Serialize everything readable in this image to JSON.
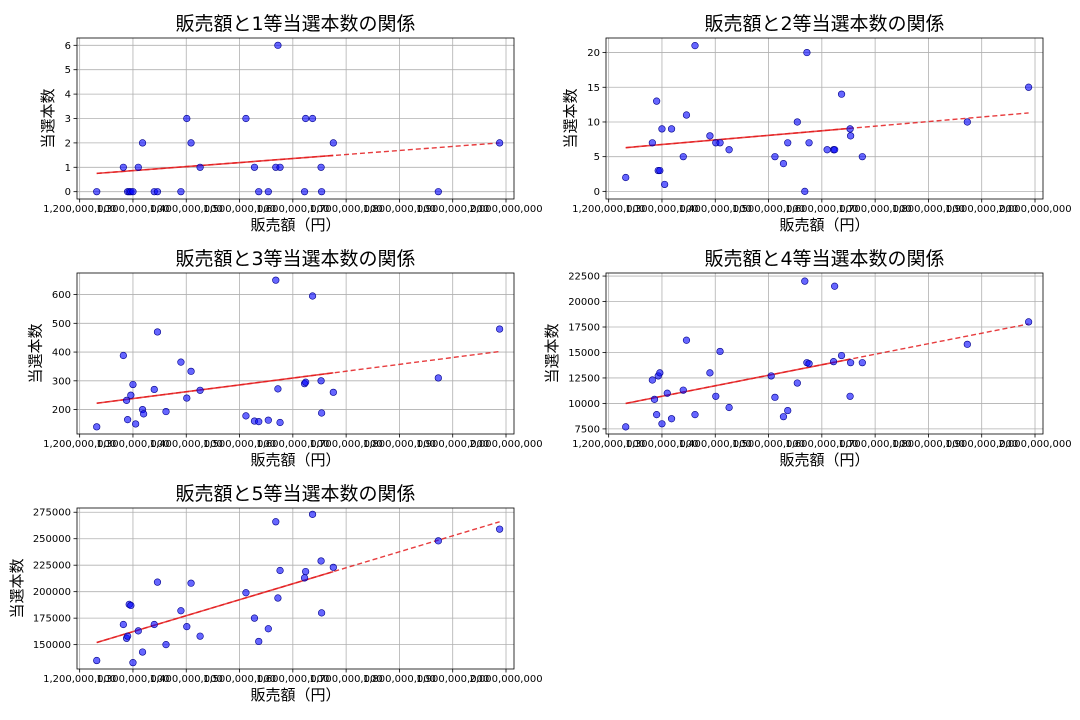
{
  "chart_data": [
    {
      "type": "scatter",
      "title": "販売額と1等当選本数の関係",
      "xlabel": "販売額（円）",
      "ylabel": "当選本数",
      "xlim": [
        1195000000,
        2015000000
      ],
      "ylim": [
        -0.3,
        6.3
      ],
      "xticks": [
        1200000000,
        1300000000,
        1400000000,
        1500000000,
        1600000000,
        1700000000,
        1800000000,
        1900000000,
        2000000000
      ],
      "xtick_labels": [
        "1,200,000,000",
        "1,300,000,000",
        "1,400,000,000",
        "1,500,000,000",
        "1,600,000,000",
        "1,700,000,000",
        "1,800,000,000",
        "1,900,000,000",
        "2,000,000,000"
      ],
      "yticks": [
        0,
        1,
        2,
        3,
        4,
        5,
        6
      ],
      "ytick_labels": [
        "0",
        "1",
        "2",
        "3",
        "4",
        "5",
        "6"
      ],
      "grid": true,
      "x": [
        1232000000,
        1282000000,
        1290000000,
        1293000000,
        1296000000,
        1300000000,
        1310000000,
        1318000000,
        1340000000,
        1346000000,
        1390000000,
        1401000000,
        1409000000,
        1426000000,
        1512000000,
        1528000000,
        1536000000,
        1554000000,
        1568000000,
        1572000000,
        1576000000,
        1622000000,
        1624000000,
        1637000000,
        1653000000,
        1654000000,
        1676000000,
        1873000000,
        1988000000
      ],
      "y": [
        0,
        1,
        0,
        0,
        0,
        0,
        1,
        2,
        0,
        0,
        0,
        3,
        2,
        1,
        3,
        1,
        0,
        0,
        1,
        6,
        1,
        0,
        3,
        3,
        1,
        0,
        2,
        0,
        2
      ],
      "trend": {
        "x": [
          1232000000,
          1988000000
        ],
        "y": [
          0.75,
          2.0
        ],
        "solid_x": [
          1232000000,
          1676000000
        ]
      }
    },
    {
      "type": "scatter",
      "title": "販売額と2等当選本数の関係",
      "xlabel": "販売額（円）",
      "ylabel": "当選本数",
      "xlim": [
        1195000000,
        2015000000
      ],
      "ylim": [
        -1.1,
        22.1
      ],
      "xticks": [
        1200000000,
        1300000000,
        1400000000,
        1500000000,
        1600000000,
        1700000000,
        1800000000,
        1900000000,
        2000000000
      ],
      "xtick_labels": [
        "1,200,000,000",
        "1,300,000,000",
        "1,400,000,000",
        "1,500,000,000",
        "1,600,000,000",
        "1,700,000,000",
        "1,800,000,000",
        "1,900,000,000",
        "2,000,000,000"
      ],
      "yticks": [
        0,
        5,
        10,
        15,
        20
      ],
      "ytick_labels": [
        "0",
        "5",
        "10",
        "15",
        "20"
      ],
      "grid": true,
      "x": [
        1232000000,
        1282000000,
        1290000000,
        1293000000,
        1296000000,
        1300000000,
        1305000000,
        1318000000,
        1340000000,
        1346000000,
        1362000000,
        1390000000,
        1401000000,
        1409000000,
        1426000000,
        1512000000,
        1528000000,
        1536000000,
        1554000000,
        1568000000,
        1572000000,
        1576000000,
        1610000000,
        1622000000,
        1624000000,
        1637000000,
        1653000000,
        1654000000,
        1676000000,
        1873000000,
        1988000000
      ],
      "y": [
        2,
        7,
        13,
        3,
        3,
        9,
        1,
        9,
        5,
        11,
        21,
        8,
        7,
        7,
        6,
        5,
        4,
        7,
        10,
        0,
        20,
        7,
        6,
        6,
        6,
        14,
        9,
        8,
        5,
        10,
        15
      ],
      "trend": {
        "x": [
          1232000000,
          1988000000
        ],
        "y": [
          6.3,
          11.3
        ],
        "solid_x": [
          1232000000,
          1654000000
        ]
      }
    },
    {
      "type": "scatter",
      "title": "販売額と3等当選本数の関係",
      "xlabel": "販売額（円）",
      "ylabel": "当選本数",
      "xlim": [
        1195000000,
        2015000000
      ],
      "ylim": [
        115,
        675
      ],
      "xticks": [
        1200000000,
        1300000000,
        1400000000,
        1500000000,
        1600000000,
        1700000000,
        1800000000,
        1900000000,
        2000000000
      ],
      "xtick_labels": [
        "1,200,000,000",
        "1,300,000,000",
        "1,400,000,000",
        "1,500,000,000",
        "1,600,000,000",
        "1,700,000,000",
        "1,800,000,000",
        "1,900,000,000",
        "2,000,000,000"
      ],
      "yticks": [
        200,
        300,
        400,
        500,
        600
      ],
      "ytick_labels": [
        "200",
        "300",
        "400",
        "500",
        "600"
      ],
      "grid": true,
      "x": [
        1232000000,
        1282000000,
        1288000000,
        1290000000,
        1296000000,
        1300000000,
        1305000000,
        1318000000,
        1320000000,
        1340000000,
        1346000000,
        1362000000,
        1390000000,
        1401000000,
        1409000000,
        1426000000,
        1512000000,
        1528000000,
        1536000000,
        1554000000,
        1568000000,
        1572000000,
        1576000000,
        1622000000,
        1624000000,
        1637000000,
        1653000000,
        1654000000,
        1676000000,
        1873000000,
        1988000000
      ],
      "y": [
        140,
        388,
        232,
        165,
        250,
        287,
        150,
        200,
        185,
        270,
        470,
        193,
        365,
        240,
        333,
        267,
        178,
        160,
        158,
        163,
        650,
        272,
        155,
        290,
        295,
        595,
        300,
        188,
        260,
        310,
        480
      ],
      "trend": {
        "x": [
          1232000000,
          1988000000
        ],
        "y": [
          222,
          402
        ],
        "solid_x": [
          1232000000,
          1676000000
        ]
      }
    },
    {
      "type": "scatter",
      "title": "販売額と4等当選本数の関係",
      "xlabel": "販売額（円）",
      "ylabel": "当選本数",
      "xlim": [
        1195000000,
        2015000000
      ],
      "ylim": [
        7000,
        22800
      ],
      "xticks": [
        1200000000,
        1300000000,
        1400000000,
        1500000000,
        1600000000,
        1700000000,
        1800000000,
        1900000000,
        2000000000
      ],
      "xtick_labels": [
        "1,200,000,000",
        "1,300,000,000",
        "1,400,000,000",
        "1,500,000,000",
        "1,600,000,000",
        "1,700,000,000",
        "1,800,000,000",
        "1,900,000,000",
        "2,000,000,000"
      ],
      "yticks": [
        7500,
        10000,
        12500,
        15000,
        17500,
        20000,
        22500
      ],
      "ytick_labels": [
        "7500",
        "10000",
        "12500",
        "15000",
        "17500",
        "20000",
        "22500"
      ],
      "grid": true,
      "x": [
        1232000000,
        1282000000,
        1286000000,
        1290000000,
        1293000000,
        1296000000,
        1300000000,
        1310000000,
        1318000000,
        1340000000,
        1346000000,
        1362000000,
        1390000000,
        1401000000,
        1409000000,
        1426000000,
        1505000000,
        1512000000,
        1528000000,
        1536000000,
        1554000000,
        1568000000,
        1572000000,
        1576000000,
        1622000000,
        1624000000,
        1637000000,
        1653000000,
        1654000000,
        1676000000,
        1873000000,
        1988000000
      ],
      "y": [
        7700,
        12300,
        10400,
        8900,
        12700,
        13000,
        8000,
        11000,
        8500,
        11300,
        16200,
        8900,
        13000,
        10700,
        15100,
        9600,
        12700,
        10600,
        8700,
        9300,
        12000,
        22000,
        14000,
        13900,
        14100,
        21500,
        14700,
        10700,
        14000,
        14000,
        15800,
        18000
      ],
      "trend": {
        "x": [
          1232000000,
          1988000000
        ],
        "y": [
          10000,
          17800
        ],
        "solid_x": [
          1232000000,
          1654000000
        ]
      }
    },
    {
      "type": "scatter",
      "title": "販売額と5等当選本数の関係",
      "xlabel": "販売額（円）",
      "ylabel": "当選本数",
      "xlim": [
        1195000000,
        2015000000
      ],
      "ylim": [
        127000,
        279000
      ],
      "xticks": [
        1200000000,
        1300000000,
        1400000000,
        1500000000,
        1600000000,
        1700000000,
        1800000000,
        1900000000,
        2000000000
      ],
      "xtick_labels": [
        "1,200,000,000",
        "1,300,000,000",
        "1,400,000,000",
        "1,500,000,000",
        "1,600,000,000",
        "1,700,000,000",
        "1,800,000,000",
        "1,900,000,000",
        "2,000,000,000"
      ],
      "yticks": [
        150000,
        175000,
        200000,
        225000,
        250000,
        275000
      ],
      "ytick_labels": [
        "150000",
        "175000",
        "200000",
        "225000",
        "250000",
        "275000"
      ],
      "grid": true,
      "x": [
        1232000000,
        1282000000,
        1288000000,
        1290000000,
        1293000000,
        1296000000,
        1300000000,
        1310000000,
        1318000000,
        1340000000,
        1346000000,
        1362000000,
        1390000000,
        1401000000,
        1409000000,
        1426000000,
        1512000000,
        1528000000,
        1536000000,
        1554000000,
        1568000000,
        1572000000,
        1576000000,
        1622000000,
        1624000000,
        1637000000,
        1653000000,
        1654000000,
        1676000000,
        1873000000,
        1988000000
      ],
      "y": [
        135000,
        169000,
        156000,
        158000,
        188000,
        187000,
        133000,
        163000,
        143000,
        169000,
        209000,
        150000,
        182000,
        167000,
        208000,
        158000,
        199000,
        175000,
        153000,
        165000,
        266000,
        194000,
        220000,
        213000,
        219000,
        273000,
        229000,
        180000,
        223000,
        248000,
        259000
      ],
      "trend": {
        "x": [
          1232000000,
          1988000000
        ],
        "y": [
          152000,
          266000
        ],
        "solid_x": [
          1232000000,
          1676000000
        ]
      }
    }
  ]
}
